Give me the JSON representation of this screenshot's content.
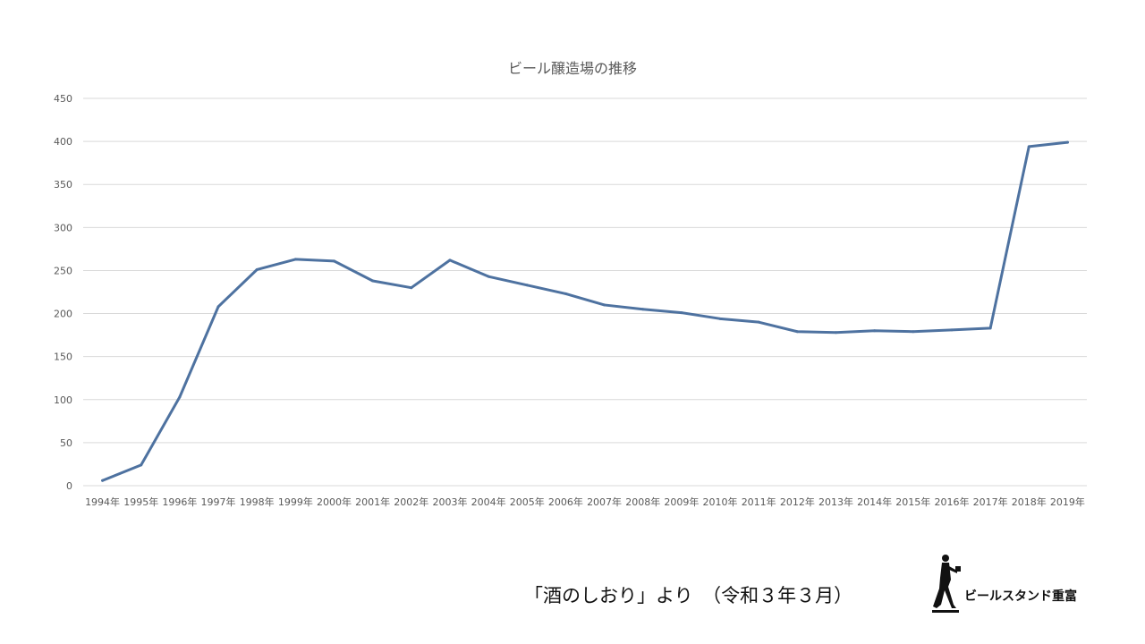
{
  "chart_data": {
    "type": "line",
    "title": "ビール醸造場の推移",
    "categories": [
      "1994年",
      "1995年",
      "1996年",
      "1997年",
      "1998年",
      "1999年",
      "2000年",
      "2001年",
      "2002年",
      "2003年",
      "2004年",
      "2005年",
      "2006年",
      "2007年",
      "2008年",
      "2009年",
      "2010年",
      "2011年",
      "2012年",
      "2013年",
      "2014年",
      "2015年",
      "2016年",
      "2017年",
      "2018年",
      "2019年"
    ],
    "series": [
      {
        "values": [
          6,
          24,
          103,
          208,
          251,
          263,
          261,
          238,
          230,
          262,
          243,
          233,
          223,
          210,
          205,
          201,
          194,
          190,
          179,
          178,
          180,
          179,
          181,
          183,
          394,
          399
        ]
      }
    ],
    "ylim": [
      0,
      450
    ],
    "yticks": [
      0,
      50,
      100,
      150,
      200,
      250,
      300,
      350,
      400,
      450
    ],
    "grid": true,
    "legend": "none",
    "color": "#4e72a0"
  },
  "source_note": "「酒のしおり」より　（令和３年３月）",
  "logo": {
    "text": "ビールスタンド重富"
  }
}
